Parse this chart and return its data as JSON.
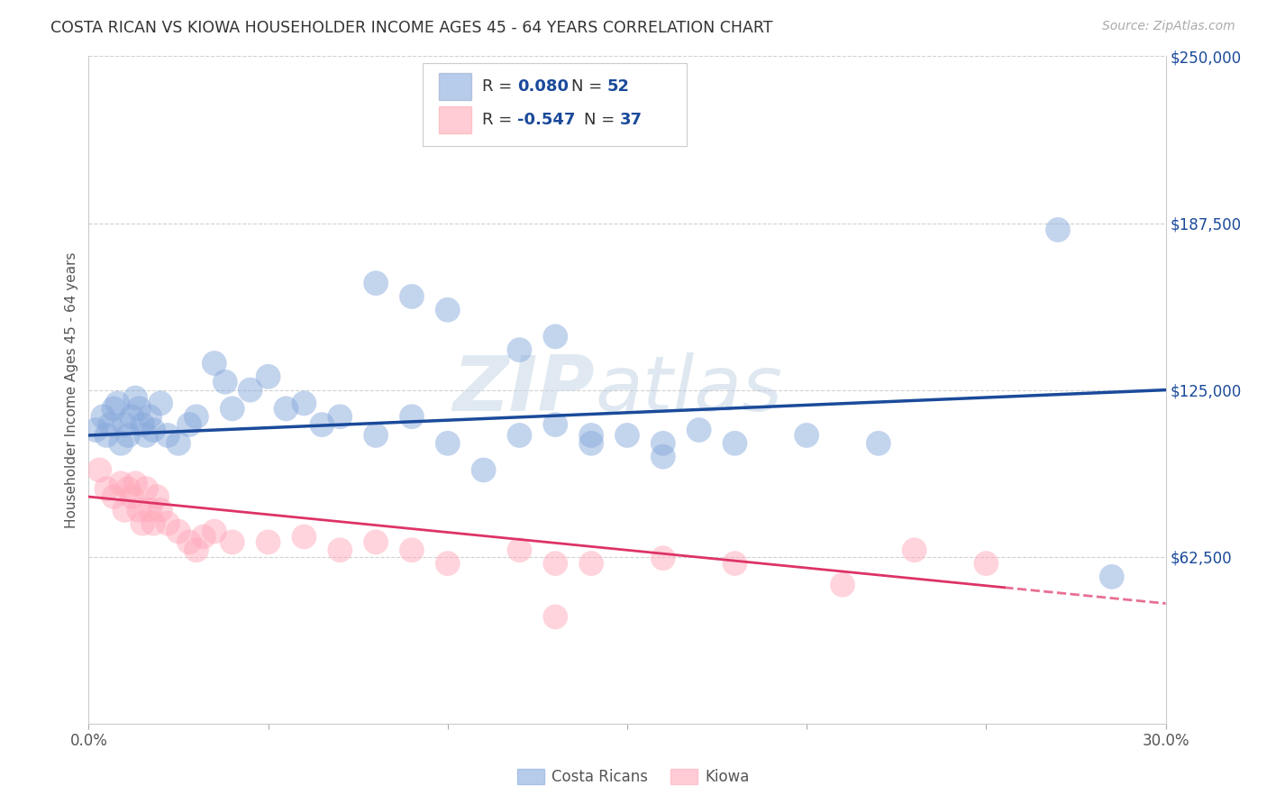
{
  "title": "COSTA RICAN VS KIOWA HOUSEHOLDER INCOME AGES 45 - 64 YEARS CORRELATION CHART",
  "source": "Source: ZipAtlas.com",
  "ylabel": "Householder Income Ages 45 - 64 years",
  "xlim": [
    0.0,
    0.3
  ],
  "ylim": [
    0,
    250000
  ],
  "yticks": [
    0,
    62500,
    125000,
    187500,
    250000
  ],
  "ytick_labels": [
    "",
    "$62,500",
    "$125,000",
    "$187,500",
    "$250,000"
  ],
  "xticks": [
    0.0,
    0.05,
    0.1,
    0.15,
    0.2,
    0.25,
    0.3
  ],
  "xtick_labels": [
    "0.0%",
    "",
    "",
    "",
    "",
    "",
    "30.0%"
  ],
  "background_color": "#ffffff",
  "grid_color": "#cccccc",
  "watermark_zip": "ZIP",
  "watermark_atlas": "atlas",
  "blue_color": "#88aadd",
  "pink_color": "#ffaabb",
  "line_blue": "#1a4a9a",
  "line_pink": "#dd3366",
  "blue_scatter_x": [
    0.002,
    0.004,
    0.005,
    0.006,
    0.007,
    0.008,
    0.009,
    0.01,
    0.011,
    0.012,
    0.013,
    0.014,
    0.015,
    0.016,
    0.017,
    0.018,
    0.02,
    0.022,
    0.025,
    0.028,
    0.03,
    0.035,
    0.038,
    0.04,
    0.045,
    0.05,
    0.055,
    0.06,
    0.065,
    0.07,
    0.08,
    0.09,
    0.1,
    0.11,
    0.12,
    0.13,
    0.14,
    0.15,
    0.16,
    0.17,
    0.08,
    0.09,
    0.1,
    0.12,
    0.13,
    0.14,
    0.16,
    0.18,
    0.2,
    0.22,
    0.27,
    0.285
  ],
  "blue_scatter_y": [
    110000,
    115000,
    108000,
    112000,
    118000,
    120000,
    105000,
    112000,
    108000,
    115000,
    122000,
    118000,
    112000,
    108000,
    115000,
    110000,
    120000,
    108000,
    105000,
    112000,
    115000,
    135000,
    128000,
    118000,
    125000,
    130000,
    118000,
    120000,
    112000,
    115000,
    108000,
    115000,
    105000,
    95000,
    108000,
    112000,
    105000,
    108000,
    105000,
    110000,
    165000,
    160000,
    155000,
    140000,
    145000,
    108000,
    100000,
    105000,
    108000,
    105000,
    185000,
    55000
  ],
  "pink_scatter_x": [
    0.003,
    0.005,
    0.007,
    0.009,
    0.01,
    0.011,
    0.012,
    0.013,
    0.014,
    0.015,
    0.016,
    0.017,
    0.018,
    0.019,
    0.02,
    0.022,
    0.025,
    0.028,
    0.03,
    0.032,
    0.035,
    0.04,
    0.05,
    0.06,
    0.07,
    0.08,
    0.09,
    0.1,
    0.12,
    0.13,
    0.14,
    0.16,
    0.18,
    0.21,
    0.23,
    0.25,
    0.13
  ],
  "pink_scatter_y": [
    95000,
    88000,
    85000,
    90000,
    80000,
    88000,
    85000,
    90000,
    80000,
    75000,
    88000,
    80000,
    75000,
    85000,
    80000,
    75000,
    72000,
    68000,
    65000,
    70000,
    72000,
    68000,
    68000,
    70000,
    65000,
    68000,
    65000,
    60000,
    65000,
    60000,
    60000,
    62000,
    60000,
    52000,
    65000,
    60000,
    40000
  ]
}
